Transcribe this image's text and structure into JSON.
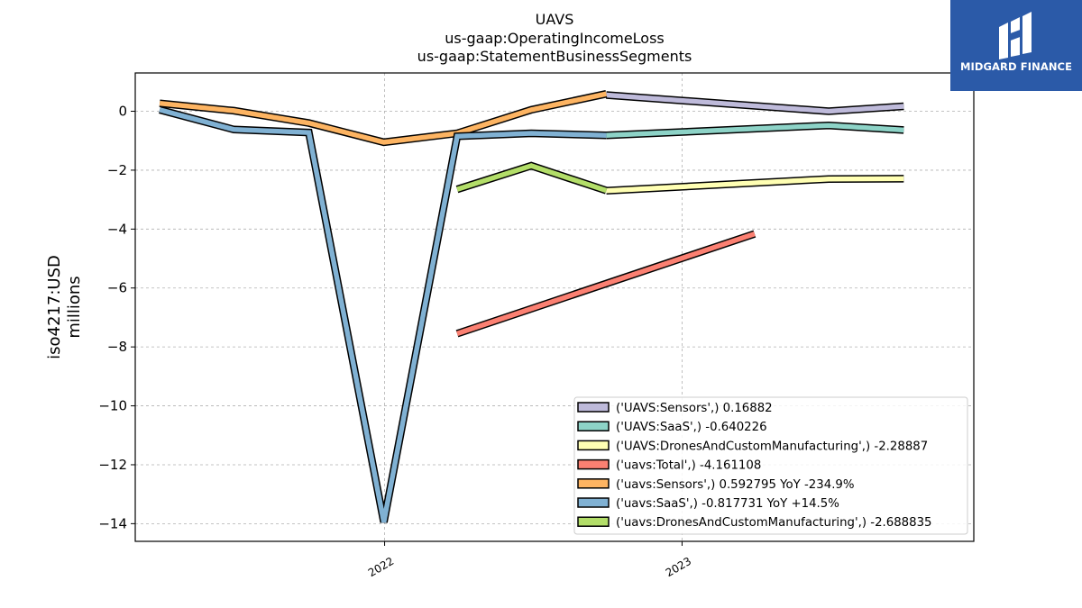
{
  "chart_data": {
    "type": "line",
    "title_lines": [
      "UAVS",
      "us-gaap:OperatingIncomeLoss",
      "us-gaap:StatementBusinessSegments"
    ],
    "ylabel_lines": [
      "iso4217:USD",
      "millions"
    ],
    "xlabel": "",
    "x_ticks": [
      "2022",
      "2023"
    ],
    "y_ticks": [
      "0",
      "−2",
      "−4",
      "−6",
      "−8",
      "−10",
      "−12",
      "−14"
    ],
    "ylim": [
      -14.6,
      1.3
    ],
    "xlim": [
      "2021-03-01",
      "2023-12-25"
    ],
    "grid": true,
    "legend_position": "lower right",
    "series": [
      {
        "name": "('UAVS:Sensors',) 0.16882",
        "color": "#bebada",
        "points": [
          [
            "2022-09-30",
            0.55
          ],
          [
            "2023-06-30",
            0.0
          ],
          [
            "2023-09-30",
            0.17
          ]
        ]
      },
      {
        "name": "('UAVS:SaaS',) -0.640226",
        "color": "#8dd3c7",
        "points": [
          [
            "2022-09-30",
            -0.82
          ],
          [
            "2023-06-30",
            -0.48
          ],
          [
            "2023-09-30",
            -0.64
          ]
        ]
      },
      {
        "name": "('UAVS:DronesAndCustomManufacturing',) -2.28887",
        "color": "#ffffb3",
        "points": [
          [
            "2022-09-30",
            -2.7
          ],
          [
            "2023-06-30",
            -2.3
          ],
          [
            "2023-09-30",
            -2.29
          ]
        ]
      },
      {
        "name": "('uavs:Total',) -4.161108",
        "color": "#fb8072",
        "points": [
          [
            "2022-03-31",
            -7.55
          ],
          [
            "2023-03-31",
            -4.16
          ]
        ]
      },
      {
        "name": "('uavs:Sensors',) 0.592795 YoY -234.9%",
        "color": "#fdb462",
        "points": [
          [
            "2021-03-31",
            0.27
          ],
          [
            "2021-06-30",
            0.02
          ],
          [
            "2021-09-30",
            -0.4
          ],
          [
            "2021-12-31",
            -1.05
          ],
          [
            "2022-03-31",
            -0.75
          ],
          [
            "2022-06-30",
            0.05
          ],
          [
            "2022-09-30",
            0.59
          ]
        ]
      },
      {
        "name": "('uavs:SaaS',) -0.817731 YoY +14.5%",
        "color": "#80b1d3",
        "points": [
          [
            "2021-03-31",
            0.05
          ],
          [
            "2021-06-30",
            -0.62
          ],
          [
            "2021-09-30",
            -0.72
          ],
          [
            "2021-12-31",
            -13.95
          ],
          [
            "2022-03-31",
            -0.85
          ],
          [
            "2022-06-30",
            -0.75
          ],
          [
            "2022-09-30",
            -0.82
          ]
        ]
      },
      {
        "name": "('uavs:DronesAndCustomManufacturing',) -2.688835",
        "color": "#b3de69",
        "points": [
          [
            "2022-03-31",
            -2.65
          ],
          [
            "2022-06-30",
            -1.85
          ],
          [
            "2022-09-30",
            -2.69
          ]
        ]
      }
    ]
  },
  "brand": {
    "name": "MIDGARD FINANCE",
    "mark_icon": "midgard-logo-icon",
    "background": "#2b5aa8"
  }
}
